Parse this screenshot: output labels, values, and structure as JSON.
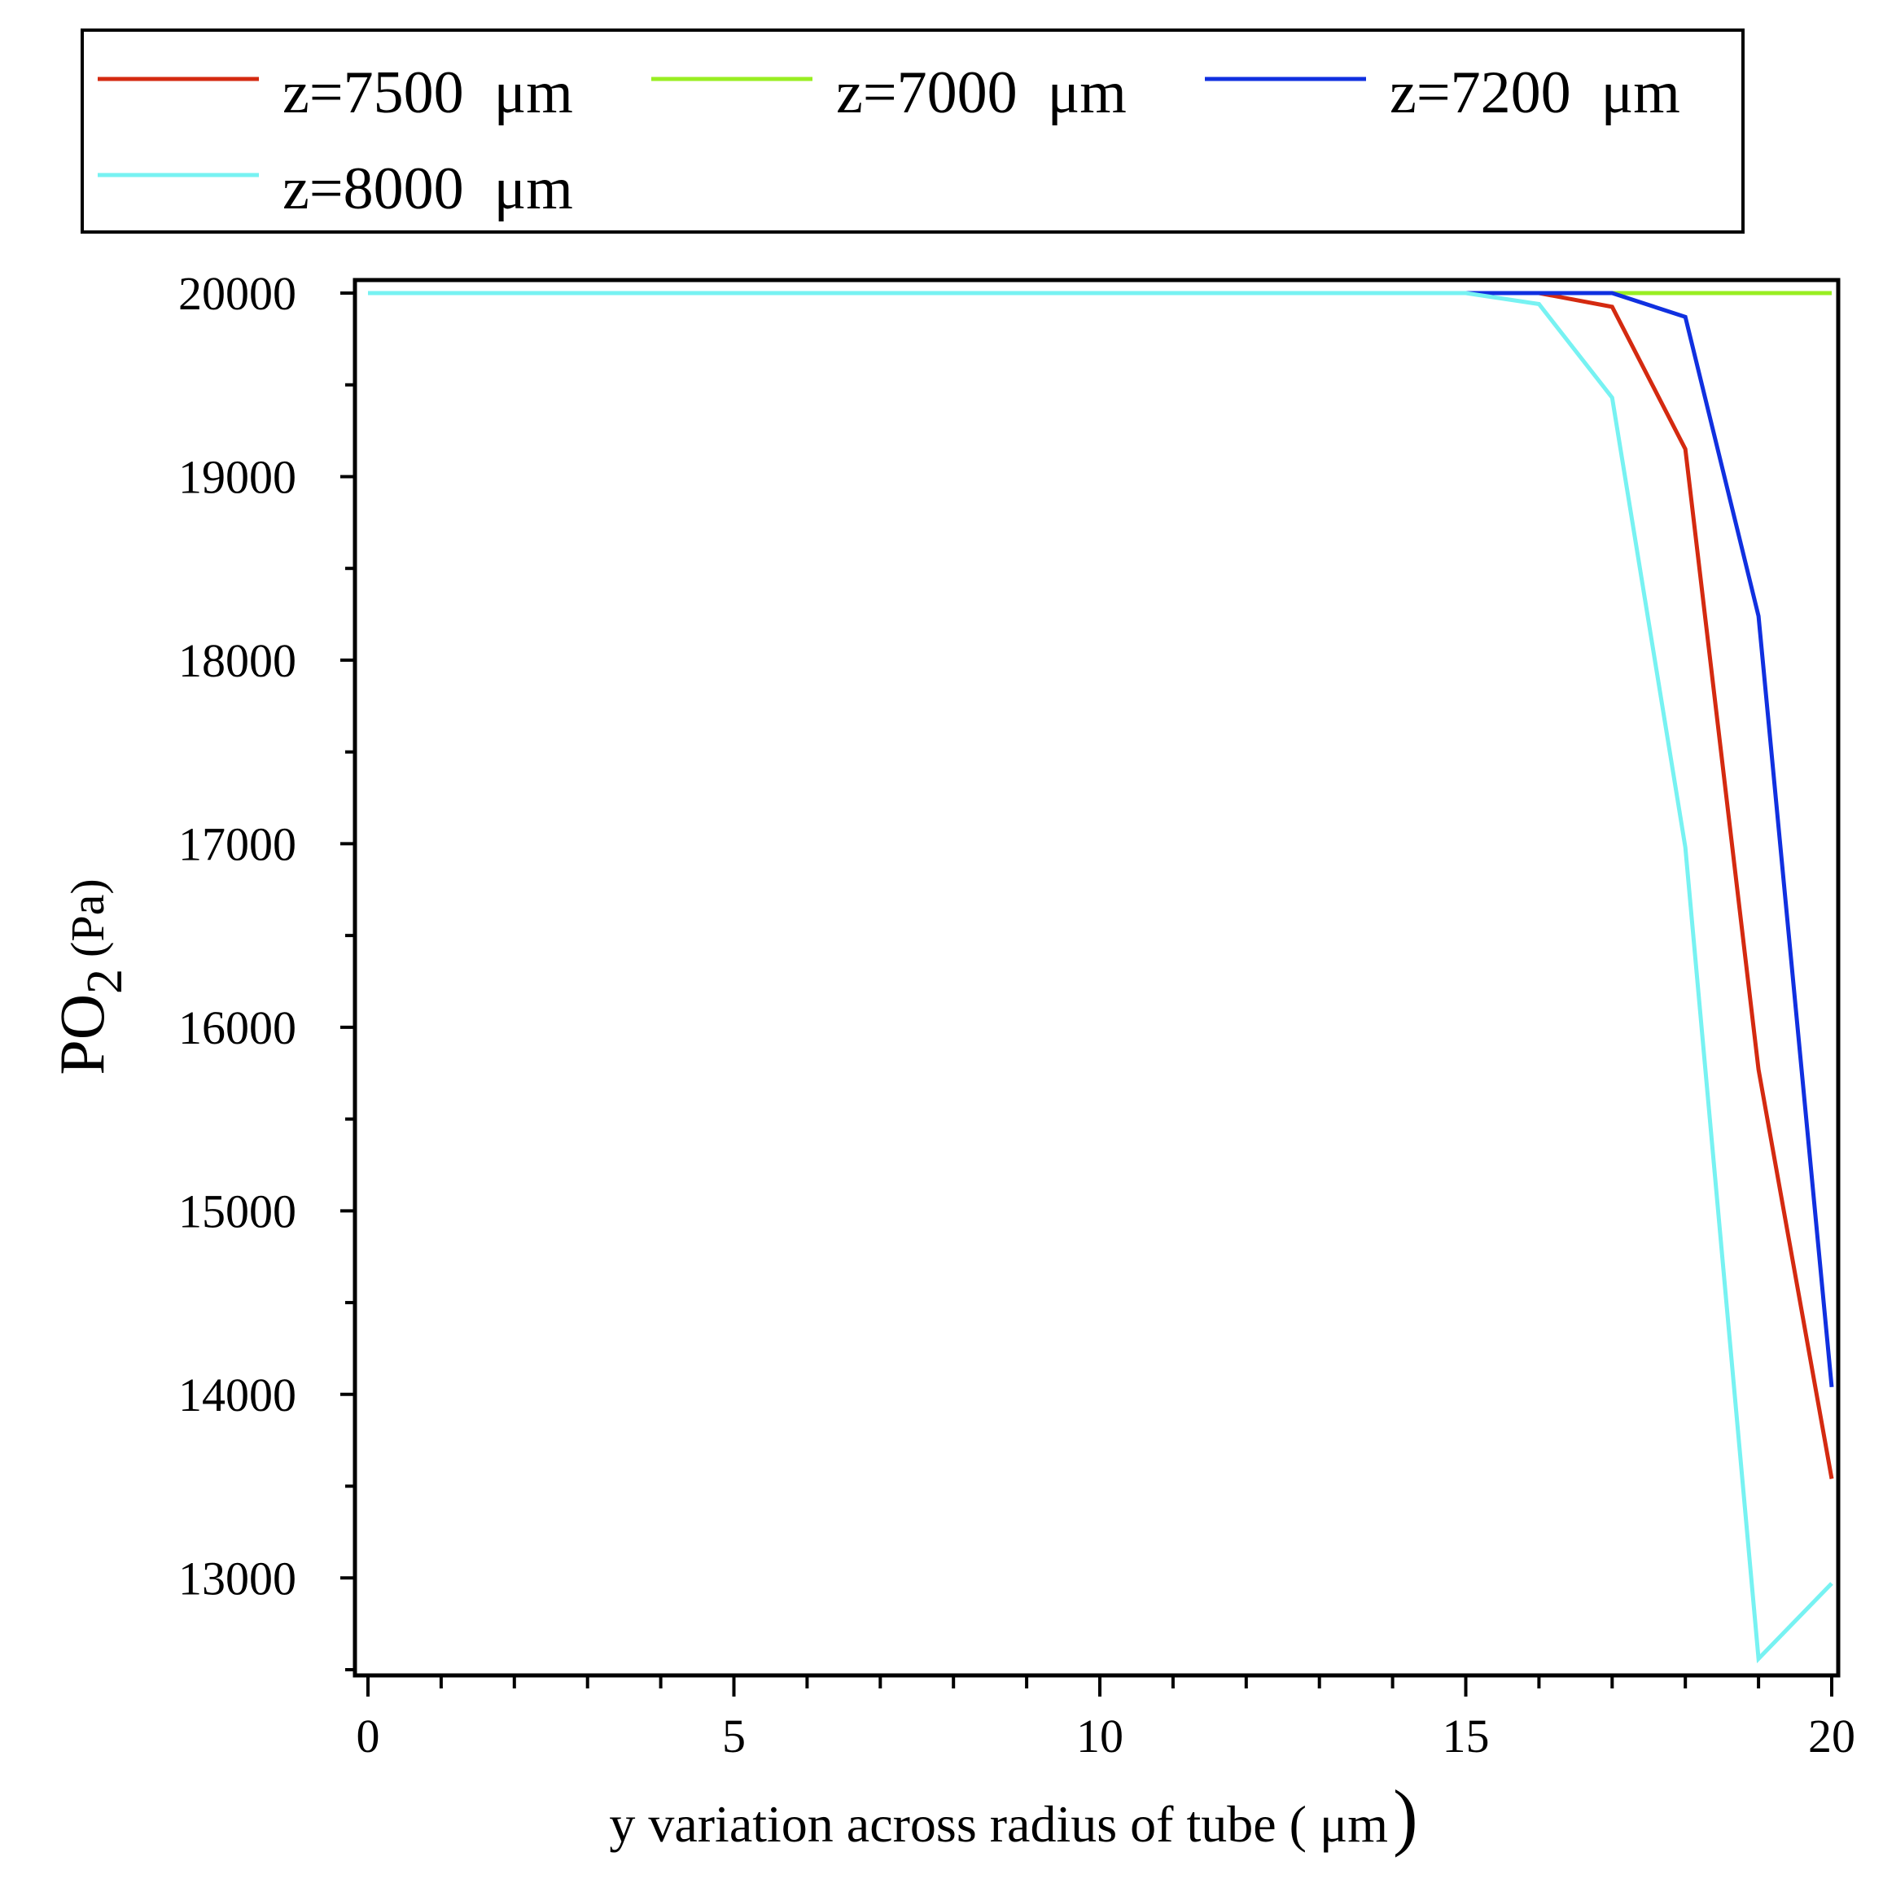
{
  "chart_data": {
    "type": "line",
    "xlabel": "y variation across radius of tube (  μm",
    "xlabel_paren": ")",
    "ylabel": "PO",
    "ylabel_sub": "2",
    "ylabel_unit": "(Pa)",
    "xlim": [
      0,
      20
    ],
    "ylim": [
      12500,
      20000
    ],
    "x_ticks": [
      0,
      5,
      10,
      15,
      20
    ],
    "x_tick_labels": [
      "0",
      "5",
      "10",
      "15",
      "20"
    ],
    "y_ticks": [
      13000,
      14000,
      15000,
      16000,
      17000,
      18000,
      19000,
      20000
    ],
    "y_tick_labels": [
      "13000",
      "14000",
      "15000",
      "16000",
      "17000",
      "18000",
      "19000",
      "20000"
    ],
    "grid": false,
    "legend_position": "top",
    "series": [
      {
        "name": "z=7500  μm",
        "color": "#d42a10",
        "x": [
          0,
          15,
          16,
          17,
          18,
          19,
          20
        ],
        "y": [
          20000,
          20000,
          20000,
          19925,
          19150,
          15770,
          13540
        ]
      },
      {
        "name": "z=7000  μm",
        "color": "#99ee22",
        "x": [
          0,
          15,
          16,
          17,
          18,
          19,
          20
        ],
        "y": [
          20000,
          20000,
          20000,
          20000,
          20000,
          20000,
          20000
        ]
      },
      {
        "name": "z=7200  μm",
        "color": "#1030e0",
        "x": [
          0,
          15,
          16,
          17,
          18,
          19,
          20
        ],
        "y": [
          20000,
          20000,
          20000,
          20000,
          19870,
          18240,
          14040
        ]
      },
      {
        "name": "z=8000  μm",
        "color": "#77f2f2",
        "x": [
          0,
          15,
          16,
          17,
          18,
          19,
          20
        ],
        "y": [
          20000,
          20000,
          19940,
          19430,
          16980,
          12560,
          12970
        ]
      }
    ]
  }
}
